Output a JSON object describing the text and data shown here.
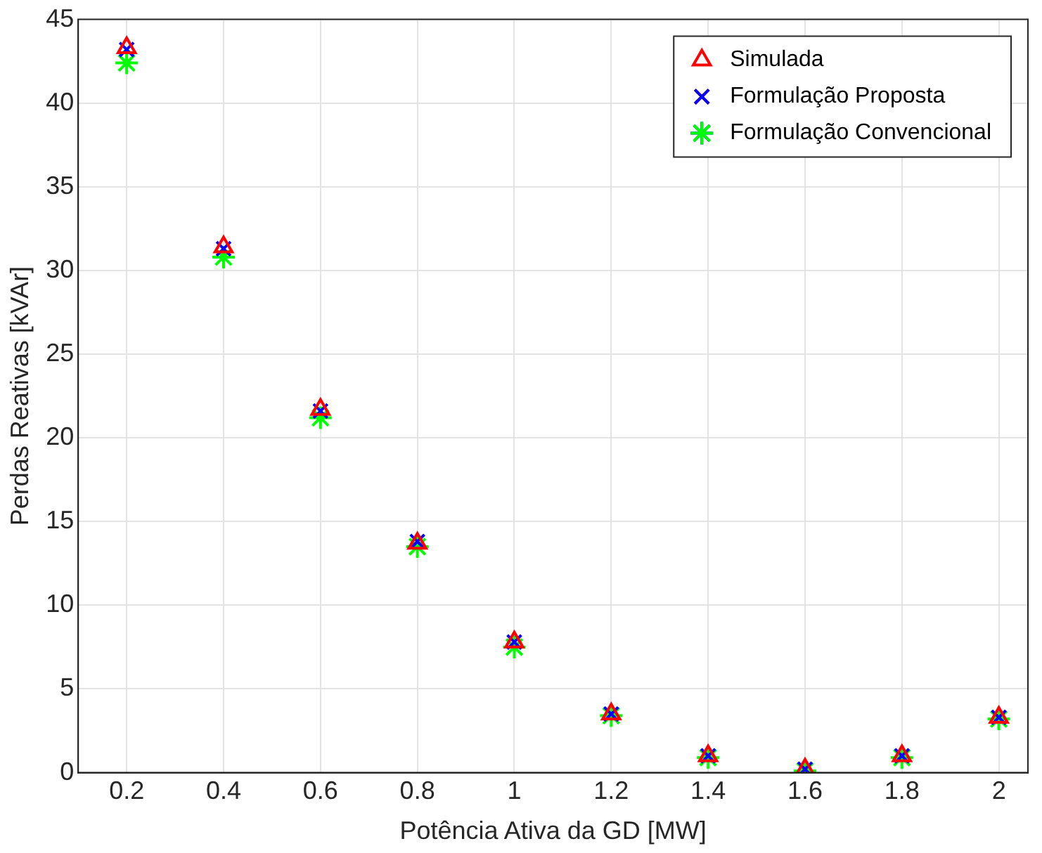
{
  "chart_data": {
    "type": "scatter",
    "xlabel": "Potência Ativa da GD [MW]",
    "ylabel": "Perdas Reativas [kVAr]",
    "x": [
      0.2,
      0.4,
      0.6,
      0.8,
      1,
      1.2,
      1.4,
      1.6,
      1.8,
      2
    ],
    "series": [
      {
        "name": "Simulada",
        "color": "#ff0000",
        "marker": "triangle",
        "values": [
          43.3,
          31.4,
          21.7,
          13.7,
          7.8,
          3.5,
          1.0,
          0.2,
          1.0,
          3.3
        ]
      },
      {
        "name": "Formulação Proposta",
        "color": "#0000ff",
        "marker": "cross",
        "values": [
          43.2,
          31.3,
          21.6,
          13.8,
          7.8,
          3.5,
          1.0,
          0.2,
          1.0,
          3.3
        ]
      },
      {
        "name": "Formulação Convencional",
        "color": "#00ff00",
        "values": [
          42.4,
          30.8,
          21.2,
          13.5,
          7.5,
          3.4,
          0.9,
          0.1,
          0.9,
          3.2
        ]
      }
    ],
    "xlim": [
      0.1,
      2.06
    ],
    "xticks": [
      0.2,
      0.4,
      0.6,
      0.8,
      1,
      1.2,
      1.4,
      1.6,
      1.8,
      2
    ],
    "ylim": [
      0,
      45
    ],
    "yticks": [
      0,
      5,
      10,
      15,
      20,
      25,
      30,
      35,
      40,
      45
    ],
    "grid": true,
    "legend": "top right"
  }
}
